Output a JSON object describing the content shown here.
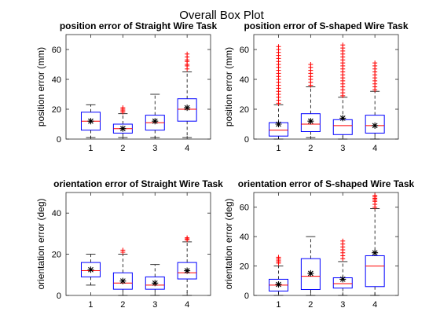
{
  "figure": {
    "title": "Overall Box Plot",
    "colors": {
      "box": "#0000ff",
      "whisker": "#000000",
      "outlier": "#ff0000",
      "mean": "#000000",
      "axis": "#262626"
    }
  },
  "chart_data": [
    {
      "type": "box",
      "title": "position error of Straight Wire Task",
      "xlabel": "",
      "ylabel": "position error (mm)",
      "ylim": [
        0,
        70
      ],
      "yticks": [
        0,
        20,
        40,
        60
      ],
      "categories": [
        "1",
        "2",
        "3",
        "4"
      ],
      "boxes": [
        {
          "category": "1",
          "whisker_low": 1,
          "q1": 6,
          "median": 12,
          "q3": 18,
          "whisker_high": 23,
          "mean": 12,
          "outliers": []
        },
        {
          "category": "2",
          "whisker_low": 1,
          "q1": 4,
          "median": 7,
          "q3": 10,
          "whisker_high": 17,
          "mean": 7,
          "outliers": [
            18,
            19,
            20,
            21
          ]
        },
        {
          "category": "3",
          "whisker_low": 1,
          "q1": 6,
          "median": 11,
          "q3": 16,
          "whisker_high": 30,
          "mean": 12,
          "outliers": []
        },
        {
          "category": "4",
          "whisker_low": 1,
          "q1": 12,
          "median": 20,
          "q3": 27,
          "whisker_high": 45,
          "mean": 21,
          "outliers": [
            47,
            49,
            50,
            52,
            53,
            55,
            57
          ]
        }
      ]
    },
    {
      "type": "box",
      "title": "position error of S-shaped Wire Task",
      "xlabel": "",
      "ylabel": "position error (mm)",
      "ylim": [
        0,
        70
      ],
      "yticks": [
        0,
        20,
        40,
        60
      ],
      "categories": [
        "1",
        "2",
        "3",
        "4"
      ],
      "boxes": [
        {
          "category": "1",
          "whisker_low": 0,
          "q1": 2,
          "median": 6,
          "q3": 11,
          "whisker_high": 23,
          "mean": 10,
          "outliers": [
            24,
            26,
            28,
            30,
            32,
            34,
            36,
            38,
            40,
            42,
            44,
            46,
            48,
            50,
            52,
            54,
            56,
            58,
            60,
            62
          ]
        },
        {
          "category": "2",
          "whisker_low": 1,
          "q1": 5,
          "median": 10,
          "q3": 17,
          "whisker_high": 35,
          "mean": 12,
          "outliers": [
            36,
            38,
            40,
            42,
            44,
            46,
            48,
            50
          ]
        },
        {
          "category": "3",
          "whisker_low": 0,
          "q1": 3,
          "median": 9,
          "q3": 13,
          "whisker_high": 28,
          "mean": 14,
          "outliers": [
            29,
            31,
            33,
            35,
            37,
            39,
            41,
            43,
            45,
            47,
            49,
            51,
            53,
            55,
            57,
            59,
            61,
            63
          ]
        },
        {
          "category": "4",
          "whisker_low": 0,
          "q1": 4,
          "median": 9,
          "q3": 16,
          "whisker_high": 32,
          "mean": 9,
          "outliers": [
            33,
            35,
            37,
            39,
            41,
            43,
            45,
            47,
            49,
            51
          ]
        }
      ]
    },
    {
      "type": "box",
      "title": "orientation error of Straight Wire Task",
      "xlabel": "",
      "ylabel": "orientation error (deg)",
      "ylim": [
        0,
        50
      ],
      "yticks": [
        0,
        20,
        40
      ],
      "categories": [
        "1",
        "2",
        "3",
        "4"
      ],
      "boxes": [
        {
          "category": "1",
          "whisker_low": 5,
          "q1": 9,
          "median": 12,
          "q3": 16,
          "whisker_high": 20,
          "mean": 12.5,
          "outliers": []
        },
        {
          "category": "2",
          "whisker_low": 0,
          "q1": 3,
          "median": 6,
          "q3": 11,
          "whisker_high": 20,
          "mean": 7,
          "outliers": [
            21,
            22
          ]
        },
        {
          "category": "3",
          "whisker_low": 0,
          "q1": 3,
          "median": 5,
          "q3": 9,
          "whisker_high": 15,
          "mean": 6,
          "outliers": []
        },
        {
          "category": "4",
          "whisker_low": 0,
          "q1": 8,
          "median": 11,
          "q3": 16,
          "whisker_high": 26,
          "mean": 12,
          "outliers": [
            27,
            27.5,
            28
          ]
        }
      ]
    },
    {
      "type": "box",
      "title": "orientation error of S-shaped Wire Task",
      "xlabel": "",
      "ylabel": "orientation error (deg)",
      "ylim": [
        0,
        70
      ],
      "yticks": [
        0,
        20,
        40,
        60
      ],
      "categories": [
        "1",
        "2",
        "3",
        "4"
      ],
      "boxes": [
        {
          "category": "1",
          "whisker_low": 0,
          "q1": 3,
          "median": 7,
          "q3": 11,
          "whisker_high": 20,
          "mean": 7.5,
          "outliers": [
            22,
            23,
            24,
            25,
            26
          ]
        },
        {
          "category": "2",
          "whisker_low": 0,
          "q1": 4,
          "median": 13,
          "q3": 25,
          "whisker_high": 40,
          "mean": 15,
          "outliers": []
        },
        {
          "category": "3",
          "whisker_low": 0,
          "q1": 5,
          "median": 8,
          "q3": 12,
          "whisker_high": 23,
          "mean": 11,
          "outliers": [
            25,
            27,
            29,
            31,
            33,
            35,
            37
          ]
        },
        {
          "category": "4",
          "whisker_low": 0,
          "q1": 6,
          "median": 20,
          "q3": 27,
          "whisker_high": 59,
          "mean": 29,
          "outliers": [
            60,
            62,
            64,
            65,
            66,
            67,
            68
          ]
        }
      ]
    }
  ]
}
